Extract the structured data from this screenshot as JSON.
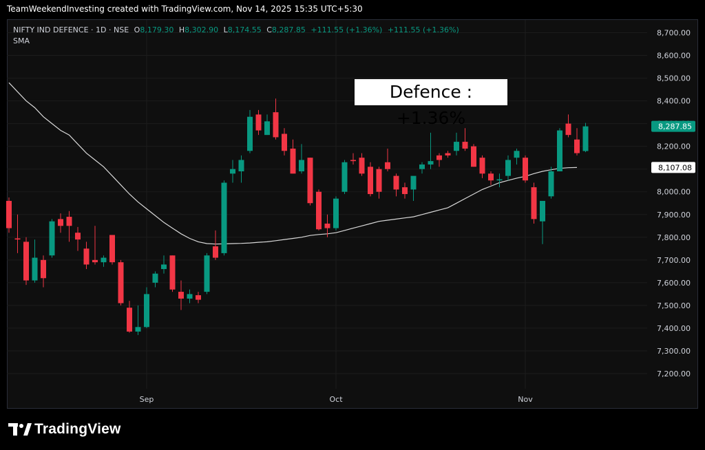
{
  "caption": "TeamWeekendInvesting created with TradingView.com, Nov 14, 2025 15:35 UTC+5:30",
  "legend": {
    "symbol": "NIFTY IND DEFENCE · 1D · NSE",
    "open_key": "O",
    "open": "8,179.30",
    "high_key": "H",
    "high": "8,302.90",
    "low_key": "L",
    "low": "8,174.55",
    "close_key": "C",
    "close": "8,287.85",
    "change": "+111.55 (+1.36%)",
    "change_repeat": "+111.55 (+1.36%)",
    "indicator": "SMA"
  },
  "annotation": "Defence : +1.36%",
  "brand": "TradingView",
  "colors": {
    "up": "#089981",
    "down": "#f23645",
    "sma": "#d9d9d9",
    "grid": "#1c1c1c",
    "axis_text": "#d1d4dc"
  },
  "chart_data": {
    "type": "candlestick",
    "ylim": [
      7150,
      8750
    ],
    "yticks": [
      7200,
      7300,
      7400,
      7500,
      7600,
      7700,
      7800,
      7900,
      8000,
      8100,
      8200,
      8300,
      8400,
      8500,
      8600,
      8700
    ],
    "ytick_labels": [
      "7,200.00",
      "7,300.00",
      "7,400.00",
      "7,500.00",
      "7,600.00",
      "7,700.00",
      "7,800.00",
      "7,900.00",
      "8,000.00",
      "8,100.00",
      "8,200.00",
      "8,300.00",
      "8,400.00",
      "8,500.00",
      "8,600.00",
      "8,700.00"
    ],
    "xtick_labels": [
      {
        "label": "Sep",
        "index": 16
      },
      {
        "label": "Oct",
        "index": 38
      },
      {
        "label": "Nov",
        "index": 60
      }
    ],
    "last_price_label": "8,287.85",
    "sma_value_label": "8,107.08",
    "candles": [
      {
        "o": 7960,
        "h": 7975,
        "l": 7820,
        "c": 7840
      },
      {
        "o": 7795,
        "h": 7900,
        "l": 7730,
        "c": 7790
      },
      {
        "o": 7780,
        "h": 7800,
        "l": 7590,
        "c": 7610
      },
      {
        "o": 7610,
        "h": 7790,
        "l": 7600,
        "c": 7710
      },
      {
        "o": 7700,
        "h": 7720,
        "l": 7580,
        "c": 7620
      },
      {
        "o": 7720,
        "h": 7880,
        "l": 7710,
        "c": 7870
      },
      {
        "o": 7880,
        "h": 7905,
        "l": 7820,
        "c": 7850
      },
      {
        "o": 7890,
        "h": 7915,
        "l": 7780,
        "c": 7850
      },
      {
        "o": 7820,
        "h": 7845,
        "l": 7740,
        "c": 7790
      },
      {
        "o": 7750,
        "h": 7780,
        "l": 7660,
        "c": 7680
      },
      {
        "o": 7700,
        "h": 7850,
        "l": 7680,
        "c": 7690
      },
      {
        "o": 7690,
        "h": 7720,
        "l": 7670,
        "c": 7710
      },
      {
        "o": 7810,
        "h": 7810,
        "l": 7680,
        "c": 7690
      },
      {
        "o": 7690,
        "h": 7700,
        "l": 7500,
        "c": 7510
      },
      {
        "o": 7490,
        "h": 7520,
        "l": 7380,
        "c": 7385
      },
      {
        "o": 7385,
        "h": 7500,
        "l": 7370,
        "c": 7405
      },
      {
        "o": 7405,
        "h": 7580,
        "l": 7400,
        "c": 7550
      },
      {
        "o": 7600,
        "h": 7650,
        "l": 7580,
        "c": 7640
      },
      {
        "o": 7660,
        "h": 7720,
        "l": 7640,
        "c": 7680
      },
      {
        "o": 7720,
        "h": 7720,
        "l": 7560,
        "c": 7570
      },
      {
        "o": 7560,
        "h": 7610,
        "l": 7480,
        "c": 7530
      },
      {
        "o": 7530,
        "h": 7570,
        "l": 7510,
        "c": 7550
      },
      {
        "o": 7545,
        "h": 7560,
        "l": 7510,
        "c": 7525
      },
      {
        "o": 7560,
        "h": 7730,
        "l": 7550,
        "c": 7720
      },
      {
        "o": 7760,
        "h": 7830,
        "l": 7700,
        "c": 7710
      },
      {
        "o": 7730,
        "h": 8050,
        "l": 7720,
        "c": 8040
      },
      {
        "o": 8080,
        "h": 8140,
        "l": 8040,
        "c": 8100
      },
      {
        "o": 8090,
        "h": 8160,
        "l": 8040,
        "c": 8140
      },
      {
        "o": 8180,
        "h": 8360,
        "l": 8170,
        "c": 8330
      },
      {
        "o": 8340,
        "h": 8360,
        "l": 8250,
        "c": 8270
      },
      {
        "o": 8250,
        "h": 8340,
        "l": 8250,
        "c": 8310
      },
      {
        "o": 8350,
        "h": 8410,
        "l": 8230,
        "c": 8240
      },
      {
        "o": 8255,
        "h": 8280,
        "l": 8160,
        "c": 8180
      },
      {
        "o": 8190,
        "h": 8230,
        "l": 8080,
        "c": 8080
      },
      {
        "o": 8090,
        "h": 8210,
        "l": 8080,
        "c": 8140
      },
      {
        "o": 8150,
        "h": 8150,
        "l": 7940,
        "c": 7950
      },
      {
        "o": 8000,
        "h": 8010,
        "l": 7830,
        "c": 7835
      },
      {
        "o": 7860,
        "h": 7900,
        "l": 7800,
        "c": 7840
      },
      {
        "o": 7840,
        "h": 7980,
        "l": 7830,
        "c": 7970
      },
      {
        "o": 8000,
        "h": 8140,
        "l": 7990,
        "c": 8130
      },
      {
        "o": 8140,
        "h": 8170,
        "l": 8120,
        "c": 8135
      },
      {
        "o": 8150,
        "h": 8170,
        "l": 8070,
        "c": 8080
      },
      {
        "o": 8110,
        "h": 8130,
        "l": 7980,
        "c": 7990
      },
      {
        "o": 8100,
        "h": 8110,
        "l": 7970,
        "c": 8000
      },
      {
        "o": 8130,
        "h": 8190,
        "l": 8090,
        "c": 8100
      },
      {
        "o": 8070,
        "h": 8080,
        "l": 7980,
        "c": 8010
      },
      {
        "o": 8020,
        "h": 8040,
        "l": 7970,
        "c": 7990
      },
      {
        "o": 8010,
        "h": 8060,
        "l": 7960,
        "c": 8070
      },
      {
        "o": 8100,
        "h": 8130,
        "l": 8080,
        "c": 8120
      },
      {
        "o": 8120,
        "h": 8260,
        "l": 8100,
        "c": 8135
      },
      {
        "o": 8160,
        "h": 8170,
        "l": 8110,
        "c": 8140
      },
      {
        "o": 8170,
        "h": 8180,
        "l": 8150,
        "c": 8160
      },
      {
        "o": 8180,
        "h": 8260,
        "l": 8160,
        "c": 8220
      },
      {
        "o": 8220,
        "h": 8280,
        "l": 8180,
        "c": 8190
      },
      {
        "o": 8200,
        "h": 8210,
        "l": 8110,
        "c": 8110
      },
      {
        "o": 8150,
        "h": 8160,
        "l": 8060,
        "c": 8080
      },
      {
        "o": 8080,
        "h": 8090,
        "l": 8030,
        "c": 8050
      },
      {
        "o": 8050,
        "h": 8080,
        "l": 8020,
        "c": 8055
      },
      {
        "o": 8070,
        "h": 8160,
        "l": 8050,
        "c": 8140
      },
      {
        "o": 8150,
        "h": 8190,
        "l": 8120,
        "c": 8180
      },
      {
        "o": 8150,
        "h": 8160,
        "l": 8040,
        "c": 8050
      },
      {
        "o": 8020,
        "h": 8040,
        "l": 7860,
        "c": 7880
      },
      {
        "o": 7870,
        "h": 7960,
        "l": 7770,
        "c": 7960
      },
      {
        "o": 7980,
        "h": 8110,
        "l": 7970,
        "c": 8090
      },
      {
        "o": 8090,
        "h": 8280,
        "l": 8090,
        "c": 8270
      },
      {
        "o": 8300,
        "h": 8340,
        "l": 8240,
        "c": 8250
      },
      {
        "o": 8230,
        "h": 8280,
        "l": 8160,
        "c": 8170
      },
      {
        "o": 8179.3,
        "h": 8302.9,
        "l": 8174.55,
        "c": 8287.85
      }
    ],
    "sma": [
      8480,
      8440,
      8400,
      8370,
      8330,
      8300,
      8270,
      8250,
      8210,
      8170,
      8140,
      8110,
      8070,
      8030,
      7990,
      7955,
      7925,
      7895,
      7865,
      7840,
      7815,
      7795,
      7780,
      7772,
      7770,
      7771,
      7772,
      7773,
      7775,
      7778,
      7780,
      7785,
      7790,
      7795,
      7800,
      7808,
      7812,
      7815,
      7820,
      7830,
      7840,
      7850,
      7860,
      7870,
      7875,
      7880,
      7885,
      7890,
      7900,
      7910,
      7920,
      7930,
      7950,
      7970,
      7990,
      8010,
      8025,
      8040,
      8050,
      8060,
      8068,
      8080,
      8090,
      8097,
      8103,
      8106,
      8107.08
    ]
  }
}
